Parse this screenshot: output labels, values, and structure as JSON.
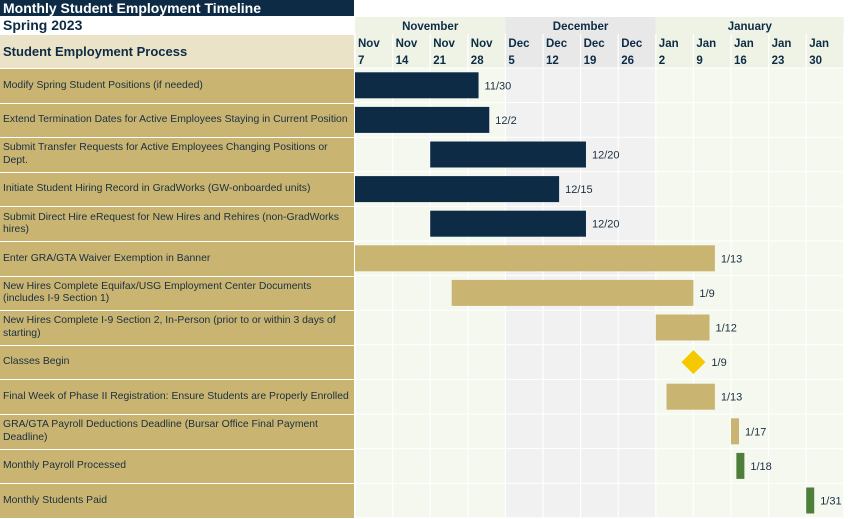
{
  "title": "Monthly Student Employment Timeline",
  "subtitle": "Spring 2023",
  "column_header": "Student Employment Process",
  "colors": {
    "navy": "#0d2b45",
    "gold": "#c9b571",
    "yellow": "#f5c800",
    "green": "#4f7d3a",
    "month_nov": "#eef3e6",
    "month_dec": "#e8e8e8",
    "month_jan": "#eef3e6"
  },
  "chart_data": {
    "type": "gantt",
    "months": [
      {
        "name": "November"
      },
      {
        "name": "December"
      },
      {
        "name": "January"
      }
    ],
    "weeks": [
      {
        "month": "Nov",
        "day": "7"
      },
      {
        "month": "Nov",
        "day": "14"
      },
      {
        "month": "Nov",
        "day": "21"
      },
      {
        "month": "Nov",
        "day": "28"
      },
      {
        "month": "Dec",
        "day": "5"
      },
      {
        "month": "Dec",
        "day": "12"
      },
      {
        "month": "Dec",
        "day": "19"
      },
      {
        "month": "Dec",
        "day": "26"
      },
      {
        "month": "Jan",
        "day": "2"
      },
      {
        "month": "Jan",
        "day": "9"
      },
      {
        "month": "Jan",
        "day": "16"
      },
      {
        "month": "Jan",
        "day": "23"
      },
      {
        "month": "Jan",
        "day": "30"
      }
    ],
    "tasks": [
      {
        "name": "Modify Spring Student Positions (if needed)",
        "start": "2022-11-07",
        "end": "2022-11-30",
        "label": "11/30",
        "color": "navy",
        "shape": "bar"
      },
      {
        "name": "Extend Termination Dates for Active Employees Staying in Current Position",
        "start": "2022-11-07",
        "end": "2022-12-02",
        "label": "12/2",
        "color": "navy",
        "shape": "bar"
      },
      {
        "name": "Submit Transfer Requests for Active Employees Changing Positions or Dept.",
        "start": "2022-11-21",
        "end": "2022-12-20",
        "label": "12/20",
        "color": "navy",
        "shape": "bar"
      },
      {
        "name": "Initiate Student Hiring Record in GradWorks (GW-onboarded units)",
        "start": "2022-11-07",
        "end": "2022-12-15",
        "label": "12/15",
        "color": "navy",
        "shape": "bar"
      },
      {
        "name": "Submit Direct Hire eRequest for New Hires and Rehires (non-GradWorks hires)",
        "start": "2022-11-21",
        "end": "2022-12-20",
        "label": "12/20",
        "color": "navy",
        "shape": "bar"
      },
      {
        "name": "Enter GRA/GTA Waiver Exemption in Banner",
        "start": "2022-11-07",
        "end": "2023-01-13",
        "label": "1/13",
        "color": "gold",
        "shape": "bar"
      },
      {
        "name": "New Hires Complete Equifax/USG Employment Center Documents (includes I-9 Section 1)",
        "start": "2022-11-25",
        "end": "2023-01-09",
        "label": "1/9",
        "color": "gold",
        "shape": "bar"
      },
      {
        "name": "New Hires Complete I-9 Section 2, In-Person (prior to or within 3 days of starting)",
        "start": "2023-01-02",
        "end": "2023-01-12",
        "label": "1/12",
        "color": "gold",
        "shape": "bar"
      },
      {
        "name": "Classes Begin",
        "start": "2023-01-09",
        "end": "2023-01-09",
        "label": "1/9",
        "color": "yellow",
        "shape": "diamond"
      },
      {
        "name": "Final Week of Phase II Registration: Ensure Students are Properly Enrolled",
        "start": "2023-01-04",
        "end": "2023-01-13",
        "label": "1/13",
        "color": "gold",
        "shape": "bar"
      },
      {
        "name": "GRA/GTA Payroll Deductions Deadline (Bursar Office Final Payment Deadline)",
        "start": "2023-01-16",
        "end": "2023-01-17",
        "label": "1/17",
        "color": "gold",
        "shape": "bar"
      },
      {
        "name": "Monthly Payroll Processed",
        "start": "2023-01-17",
        "end": "2023-01-18",
        "label": "1/18",
        "color": "green",
        "shape": "bar"
      },
      {
        "name": "Monthly Students Paid",
        "start": "2023-01-30",
        "end": "2023-01-31",
        "label": "1/31",
        "color": "green",
        "shape": "bar"
      }
    ]
  }
}
